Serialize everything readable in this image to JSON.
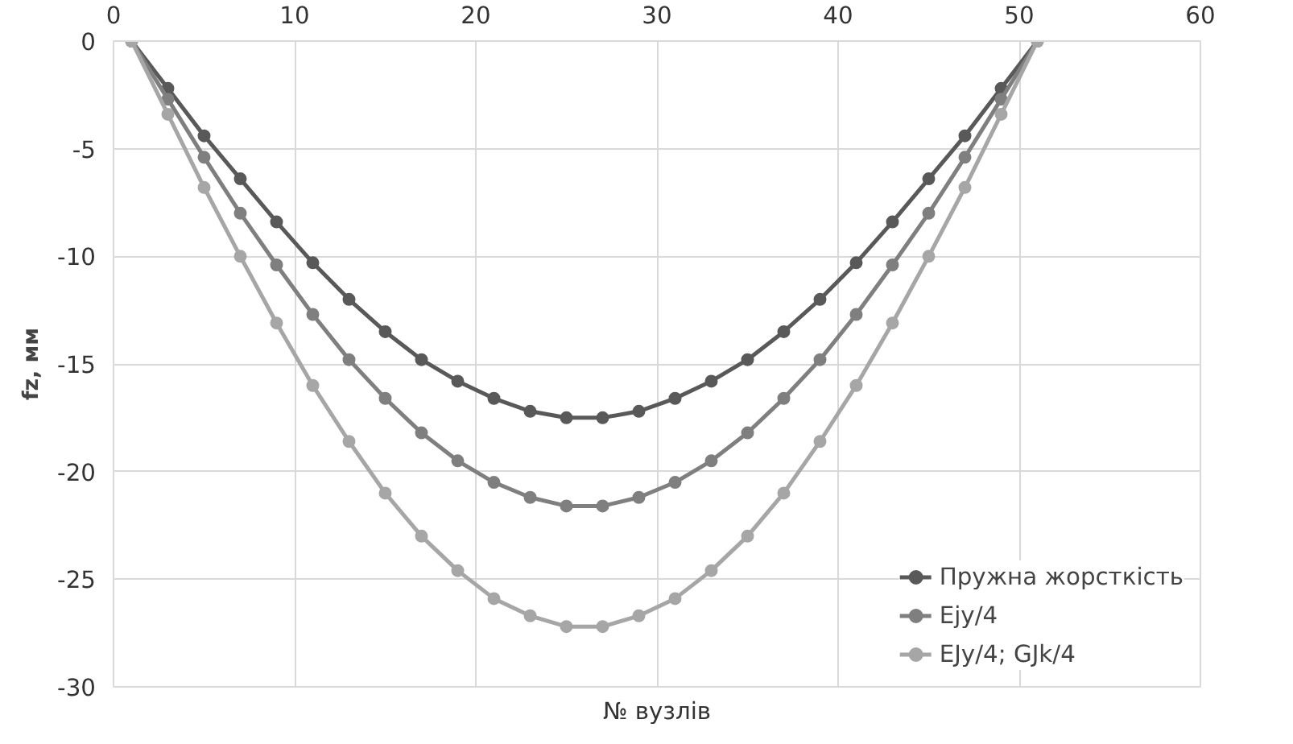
{
  "chart_data": {
    "type": "line",
    "xlabel": "№ вузлів",
    "ylabel": "fz, мм",
    "x": [
      1,
      3,
      5,
      7,
      9,
      11,
      13,
      15,
      17,
      19,
      21,
      23,
      25,
      27,
      29,
      31,
      33,
      35,
      37,
      39,
      41,
      43,
      45,
      47,
      49,
      51
    ],
    "series": [
      {
        "name": "Пружна жорсткість",
        "color": "#595959",
        "values": [
          0,
          -2.2,
          -4.4,
          -6.4,
          -8.4,
          -10.3,
          -12.0,
          -13.5,
          -14.8,
          -15.8,
          -16.6,
          -17.2,
          -17.5,
          -17.5,
          -17.2,
          -16.6,
          -15.8,
          -14.8,
          -13.5,
          -12.0,
          -10.3,
          -8.4,
          -6.4,
          -4.4,
          -2.2,
          0
        ]
      },
      {
        "name": "Ejy/4",
        "color": "#7f7f7f",
        "values": [
          0,
          -2.7,
          -5.4,
          -8.0,
          -10.4,
          -12.7,
          -14.8,
          -16.6,
          -18.2,
          -19.5,
          -20.5,
          -21.2,
          -21.6,
          -21.6,
          -21.2,
          -20.5,
          -19.5,
          -18.2,
          -16.6,
          -14.8,
          -12.7,
          -10.4,
          -8.0,
          -5.4,
          -2.7,
          0
        ]
      },
      {
        "name": "EJy/4; GJk/4",
        "color": "#a6a6a6",
        "values": [
          0,
          -3.4,
          -6.8,
          -10.0,
          -13.1,
          -16.0,
          -18.6,
          -21.0,
          -23.0,
          -24.6,
          -25.9,
          -26.7,
          -27.2,
          -27.2,
          -26.7,
          -25.9,
          -24.6,
          -23.0,
          -21.0,
          -18.6,
          -16.0,
          -13.1,
          -10.0,
          -6.8,
          -3.4,
          0
        ]
      }
    ],
    "xlim": [
      0,
      60
    ],
    "xticks": [
      0,
      10,
      20,
      30,
      40,
      50,
      60
    ],
    "ylim": [
      -30,
      0
    ],
    "yticks": [
      -30,
      -25,
      -20,
      -15,
      -10,
      -5,
      0
    ],
    "grid": true,
    "legend": "bottom right",
    "marker": "circle",
    "line_style": "solid"
  }
}
